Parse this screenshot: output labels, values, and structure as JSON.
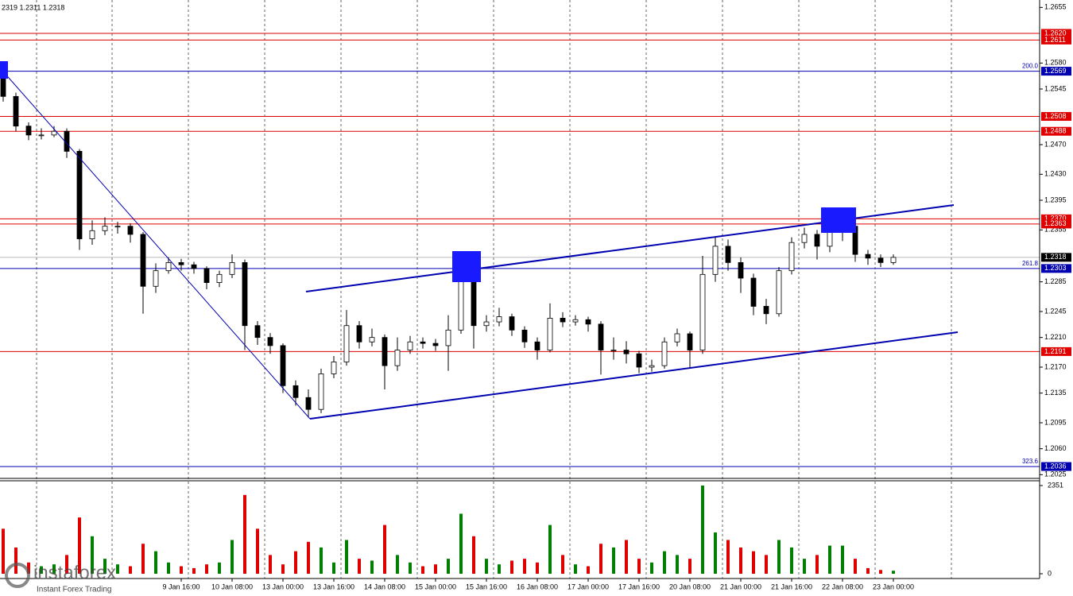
{
  "chart_data": {
    "type": "candlestick",
    "header": "2319 1.2311 1.2318",
    "categories": [
      null,
      null,
      null,
      null,
      null,
      null,
      null,
      null,
      null,
      null,
      null,
      null,
      null,
      null,
      "9 Jan 16:00",
      null,
      null,
      null,
      "10 Jan 08:00",
      null,
      null,
      null,
      "13 Jan 00:00",
      null,
      null,
      null,
      "13 Jan 16:00",
      null,
      null,
      null,
      "14 Jan 08:00",
      null,
      null,
      null,
      "15 Jan 00:00",
      null,
      null,
      null,
      "15 Jan 16:00",
      null,
      null,
      null,
      "16 Jan 08:00",
      null,
      null,
      null,
      "17 Jan 00:00",
      null,
      null,
      null,
      "17 Jan 16:00",
      null,
      null,
      null,
      "20 Jan 08:00",
      null,
      null,
      null,
      "21 Jan 00:00",
      null,
      null,
      null,
      "21 Jan 16:00",
      null,
      null,
      null,
      "22 Jan 08:00",
      null,
      null,
      null,
      "23 Jan 00:00"
    ],
    "open": [
      1.2562,
      1.2535,
      1.2495,
      1.2483,
      1.2483,
      1.2488,
      1.2461,
      1.2343,
      1.2354,
      1.236,
      1.236,
      1.2349,
      1.2279,
      1.23,
      1.2311,
      1.2308,
      1.2303,
      1.2284,
      1.2295,
      1.2311,
      1.2226,
      1.221,
      1.2199,
      1.2145,
      1.2129,
      1.2113,
      1.2161,
      1.2177,
      1.2226,
      1.2204,
      1.221,
      1.2172,
      1.2193,
      1.2204,
      1.2202,
      1.2199,
      1.222,
      1.2311,
      1.2226,
      1.2231,
      1.2238,
      1.222,
      1.2204,
      1.2193,
      1.2236,
      1.2231,
      1.2234,
      1.2228,
      1.2193,
      1.2193,
      1.2188,
      1.217,
      1.2172,
      1.2204,
      1.2215,
      1.2193,
      1.2295,
      1.2333,
      1.2311,
      1.229,
      1.2252,
      1.2242,
      1.23,
      1.2338,
      1.2349,
      1.2333,
      1.2354,
      1.236,
      1.2322,
      1.2317,
      1.2311
    ],
    "high": [
      1.2572,
      1.254,
      1.25,
      1.2492,
      1.2495,
      1.2492,
      1.2464,
      1.2368,
      1.2372,
      1.2366,
      1.2364,
      1.2352,
      1.231,
      1.2318,
      1.2316,
      1.2312,
      1.2306,
      1.23,
      1.2322,
      1.2315,
      1.2232,
      1.2216,
      1.2202,
      1.2152,
      1.214,
      1.2168,
      1.2185,
      1.2247,
      1.2232,
      1.2222,
      1.2214,
      1.221,
      1.2212,
      1.221,
      1.2208,
      1.224,
      1.2324,
      1.2315,
      1.224,
      1.225,
      1.2242,
      1.2225,
      1.221,
      1.2256,
      1.2244,
      1.224,
      1.2238,
      1.2232,
      1.221,
      1.2205,
      1.2192,
      1.218,
      1.221,
      1.2222,
      1.2218,
      1.232,
      1.2346,
      1.2342,
      1.2318,
      1.2296,
      1.2262,
      1.2305,
      1.2345,
      1.2358,
      1.2355,
      1.236,
      1.2375,
      1.2364,
      1.2328,
      1.2322,
      1.2322
    ],
    "low": [
      1.2528,
      1.2488,
      1.2476,
      1.2477,
      1.248,
      1.2452,
      1.2328,
      1.2335,
      1.2348,
      1.235,
      1.2338,
      1.2242,
      1.227,
      1.2296,
      1.23,
      1.2296,
      1.2275,
      1.2278,
      1.229,
      1.2193,
      1.22,
      1.2188,
      1.2135,
      1.2118,
      1.2102,
      1.2108,
      1.2155,
      1.2172,
      1.2195,
      1.2198,
      1.214,
      1.2165,
      1.2188,
      1.2195,
      1.2192,
      1.2165,
      1.2215,
      1.2195,
      1.2218,
      1.2225,
      1.2212,
      1.2196,
      1.218,
      1.219,
      1.2224,
      1.2226,
      1.2218,
      1.216,
      1.218,
      1.2175,
      1.2162,
      1.2164,
      1.2168,
      1.2198,
      1.2168,
      1.2188,
      1.2285,
      1.23,
      1.227,
      1.224,
      1.2228,
      1.2238,
      1.2295,
      1.233,
      1.2315,
      1.2325,
      1.234,
      1.2312,
      1.2308,
      1.2305,
      1.2308
    ],
    "close": [
      1.2535,
      1.2495,
      1.2483,
      1.2483,
      1.2488,
      1.2461,
      1.2343,
      1.2354,
      1.236,
      1.236,
      1.2349,
      1.2279,
      1.23,
      1.2311,
      1.2308,
      1.2303,
      1.2284,
      1.2295,
      1.2311,
      1.2226,
      1.221,
      1.2199,
      1.2145,
      1.2129,
      1.2113,
      1.2161,
      1.2177,
      1.2226,
      1.2204,
      1.221,
      1.2172,
      1.2193,
      1.2204,
      1.2202,
      1.2199,
      1.222,
      1.2311,
      1.2226,
      1.2231,
      1.2238,
      1.222,
      1.2204,
      1.2193,
      1.2236,
      1.2231,
      1.2234,
      1.2228,
      1.2193,
      1.2193,
      1.2188,
      1.217,
      1.2172,
      1.2204,
      1.2215,
      1.2193,
      1.2295,
      1.2333,
      1.2311,
      1.229,
      1.2252,
      1.2242,
      1.23,
      1.2338,
      1.2349,
      1.2333,
      1.2354,
      1.236,
      1.2322,
      1.2317,
      1.2311,
      1.2318
    ],
    "volume": [
      1200,
      700,
      300,
      200,
      250,
      500,
      1500,
      1000,
      400,
      250,
      200,
      800,
      600,
      300,
      200,
      150,
      250,
      300,
      900,
      2100,
      1200,
      500,
      250,
      600,
      850,
      700,
      300,
      900,
      400,
      350,
      1300,
      500,
      300,
      200,
      250,
      400,
      1600,
      1000,
      400,
      250,
      350,
      400,
      300,
      1300,
      500,
      250,
      200,
      800,
      700,
      900,
      400,
      300,
      600,
      500,
      400,
      2351,
      1100,
      900,
      700,
      600,
      500,
      900,
      700,
      400,
      500,
      750,
      750,
      400,
      150,
      100,
      80
    ],
    "ylim": [
      1.202,
      1.2665
    ],
    "yticks": [
      1.2655,
      {
        "value": 1.258,
        "label": "1.2580"
      },
      1.2545,
      {
        "value": 1.247,
        "label": "1.2470"
      },
      {
        "value": 1.243,
        "label": "1.2430"
      },
      1.2395,
      1.2355,
      1.2285,
      1.2245,
      {
        "value": 1.221,
        "label": "1.2210"
      },
      {
        "value": 1.217,
        "label": "1.2170"
      },
      1.2135,
      1.2095,
      {
        "value": 1.206,
        "label": "1.2060"
      },
      1.2025
    ],
    "volume_ylim": [
      0,
      2351
    ],
    "volume_ticks": [
      2351,
      0
    ],
    "levels": [
      {
        "value": 1.262,
        "label": "1.2620",
        "color": "#e00000"
      },
      {
        "value": 1.2611,
        "label": "1.2611",
        "color": "#e00000"
      },
      {
        "value": 1.2569,
        "label": "1.2569",
        "color": "#0000b0",
        "fib": "200.0"
      },
      {
        "value": 1.2508,
        "label": "1.2508",
        "color": "#e00000"
      },
      {
        "value": 1.2488,
        "label": "1.2488",
        "color": "#e00000"
      },
      {
        "value": 1.237,
        "label": "1.2370",
        "color": "#e00000"
      },
      {
        "value": 1.2363,
        "label": "1.2363",
        "color": "#e00000"
      },
      {
        "value": 1.2303,
        "label": "1.2303",
        "color": "#0000b0",
        "fib": "261.8"
      },
      {
        "value": 1.2191,
        "label": "1.2191",
        "color": "#e00000"
      },
      {
        "value": 1.2036,
        "label": "1.2036",
        "color": "#0000b0",
        "fib": "323.6"
      }
    ],
    "current_price": {
      "value": 1.2318,
      "label": "1.2318"
    },
    "up_color": "#ffffff",
    "down_color": "#000000",
    "volume_up_color": "#008000",
    "volume_down_color": "#e00000"
  },
  "watermark": {
    "brand": "instaforex",
    "tagline": "Instant Forex Trading"
  }
}
